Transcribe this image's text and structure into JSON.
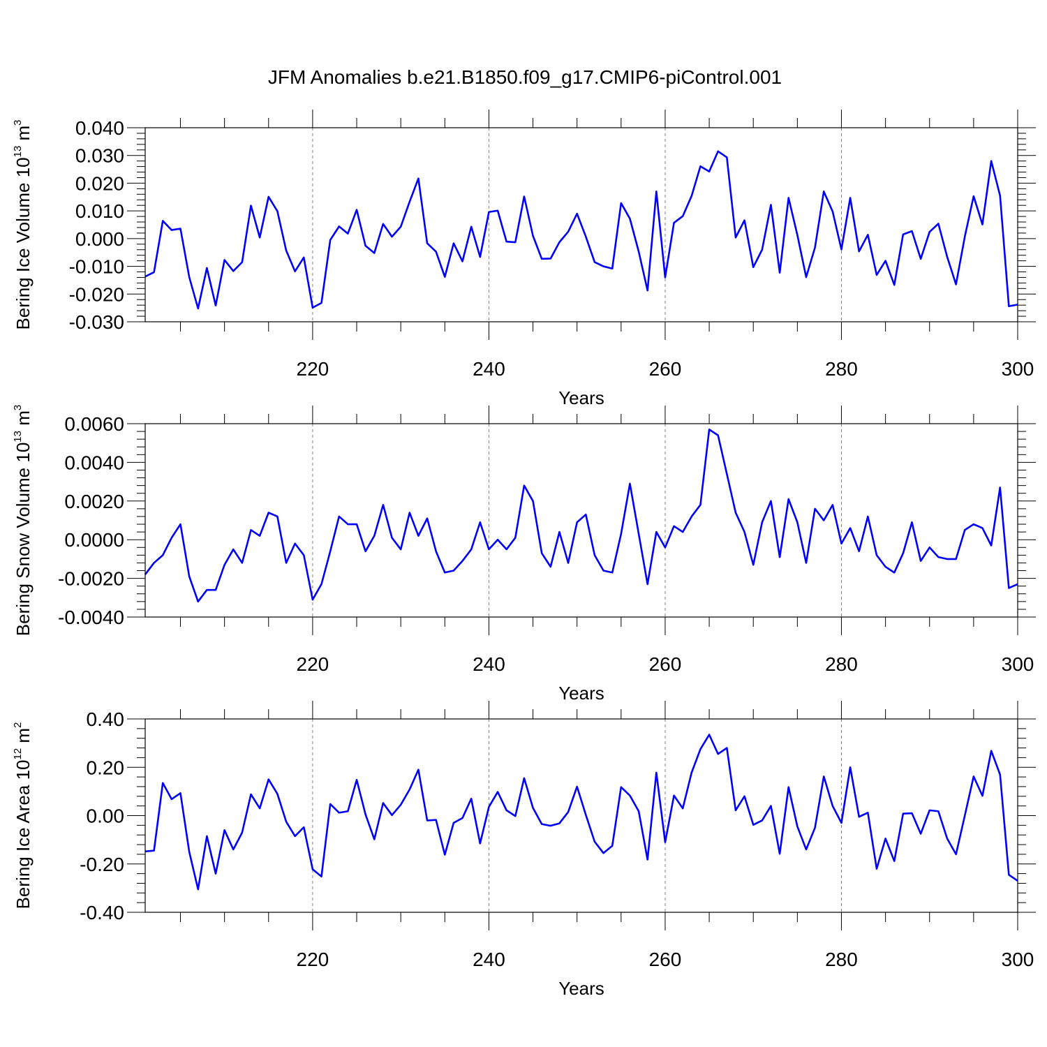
{
  "title": "JFM Anomalies b.e21.B1850.f09_g17.CMIP6-piControl.001",
  "colors": {
    "line": "#0000ff",
    "axis": "#000000",
    "grid": "#808080",
    "background": "#ffffff"
  },
  "chart_data": [
    {
      "type": "line",
      "ylabel": {
        "base": "Bering Ice Volume 10",
        "exp": "13",
        "unit": " m",
        "unit_exp": "3"
      },
      "xlabel": "Years",
      "xlim": [
        201,
        300
      ],
      "ylim": [
        -0.03,
        0.04
      ],
      "xticks": [
        220,
        240,
        260,
        280,
        300
      ],
      "yticks": [
        -0.03,
        -0.02,
        -0.01,
        0.0,
        0.01,
        0.02,
        0.03,
        0.04
      ],
      "ytick_labels": [
        "-0.030",
        "-0.020",
        "-0.010",
        "0.000",
        "0.010",
        "0.020",
        "0.030",
        "0.040"
      ],
      "grid_x": [
        220,
        240,
        260,
        280
      ],
      "x_start": 201,
      "values": [
        -0.0137,
        -0.0121,
        0.0064,
        0.0031,
        0.0036,
        -0.0139,
        -0.0252,
        -0.0106,
        -0.0241,
        -0.0077,
        -0.0117,
        -0.0085,
        0.0119,
        0.0004,
        0.0151,
        0.0099,
        -0.0043,
        -0.0118,
        -0.0068,
        -0.0249,
        -0.0232,
        -0.0005,
        0.0044,
        0.0018,
        0.0104,
        -0.0026,
        -0.0052,
        0.0053,
        0.0007,
        0.0043,
        0.0133,
        0.0217,
        -0.0017,
        -0.0047,
        -0.0138,
        -0.0017,
        -0.0082,
        0.0043,
        -0.0066,
        0.0096,
        0.0101,
        -0.0011,
        -0.0013,
        0.0152,
        0.001,
        -0.0073,
        -0.0072,
        -0.0013,
        0.0025,
        0.009,
        0.0007,
        -0.0085,
        -0.01,
        -0.0108,
        0.0128,
        0.0072,
        -0.0047,
        -0.0187,
        0.017,
        -0.014,
        0.0057,
        0.0081,
        0.0154,
        0.0261,
        0.0242,
        0.0315,
        0.0293,
        0.0004,
        0.0066,
        -0.0103,
        -0.004,
        0.0122,
        -0.0123,
        0.0147,
        0.0013,
        -0.0139,
        -0.0032,
        0.017,
        0.0098,
        -0.0039,
        0.0147,
        -0.0046,
        0.0014,
        -0.0131,
        -0.008,
        -0.0167,
        0.0015,
        0.0027,
        -0.0073,
        0.0024,
        0.0054,
        -0.0066,
        -0.0165,
        0.0007,
        0.0153,
        0.0051,
        0.028,
        0.0155,
        -0.0244,
        -0.0238
      ]
    },
    {
      "type": "line",
      "ylabel": {
        "base": "Bering Snow Volume 10",
        "exp": "13",
        "unit": " m",
        "unit_exp": "3"
      },
      "xlabel": "Years",
      "xlim": [
        201,
        300
      ],
      "ylim": [
        -0.004,
        0.006
      ],
      "xticks": [
        220,
        240,
        260,
        280,
        300
      ],
      "yticks": [
        -0.004,
        -0.002,
        0.0,
        0.002,
        0.004,
        0.006
      ],
      "ytick_labels": [
        "-0.0040",
        "-0.0020",
        "0.0000",
        "0.0020",
        "0.0040",
        "0.0060"
      ],
      "grid_x": [
        220,
        240,
        260,
        280
      ],
      "x_start": 201,
      "values": [
        -0.0018,
        -0.0012,
        -0.0008,
        0.0001,
        0.0008,
        -0.0019,
        -0.0032,
        -0.0026,
        -0.0026,
        -0.0013,
        -0.0005,
        -0.0012,
        0.0005,
        0.0002,
        0.0014,
        0.0012,
        -0.0012,
        -0.0002,
        -0.0008,
        -0.0031,
        -0.0023,
        -0.0006,
        0.0012,
        0.0008,
        0.0008,
        -0.0006,
        0.0002,
        0.0018,
        0.0001,
        -0.0005,
        0.0014,
        0.0002,
        0.0011,
        -0.0006,
        -0.0017,
        -0.0016,
        -0.0011,
        -0.0005,
        0.0009,
        -0.0005,
        0.0,
        -0.0005,
        0.0001,
        0.0028,
        0.002,
        -0.0007,
        -0.0014,
        0.0004,
        -0.0012,
        0.0009,
        0.0013,
        -0.0008,
        -0.0016,
        -0.0017,
        0.0003,
        0.0029,
        0.0003,
        -0.0023,
        0.0004,
        -0.0004,
        0.0007,
        0.0004,
        0.0012,
        0.0018,
        0.0057,
        0.0054,
        0.0034,
        0.0014,
        0.0004,
        -0.0013,
        0.0009,
        0.002,
        -0.0009,
        0.0021,
        0.0009,
        -0.0012,
        0.0016,
        0.001,
        0.0018,
        -0.0002,
        0.0006,
        -0.0006,
        0.0012,
        -0.0008,
        -0.0014,
        -0.0017,
        -0.0007,
        0.0009,
        -0.0011,
        -0.0004,
        -0.0009,
        -0.001,
        -0.001,
        0.0005,
        0.0008,
        0.0006,
        -0.0003,
        0.0027,
        -0.0025,
        -0.0023
      ]
    },
    {
      "type": "line",
      "ylabel": {
        "base": "Bering Ice Area 10",
        "exp": "12",
        "unit": " m",
        "unit_exp": "2"
      },
      "xlabel": "Years",
      "xlim": [
        201,
        300
      ],
      "ylim": [
        -0.4,
        0.4
      ],
      "xticks": [
        220,
        240,
        260,
        280,
        300
      ],
      "yticks": [
        -0.4,
        -0.2,
        0.0,
        0.2,
        0.4
      ],
      "ytick_labels": [
        "-0.40",
        "-0.20",
        "0.00",
        "0.20",
        "0.40"
      ],
      "grid_x": [
        220,
        240,
        260,
        280
      ],
      "x_start": 201,
      "values": [
        -0.148,
        -0.145,
        0.135,
        0.068,
        0.093,
        -0.15,
        -0.305,
        -0.085,
        -0.24,
        -0.06,
        -0.14,
        -0.07,
        0.088,
        0.03,
        0.15,
        0.09,
        -0.025,
        -0.085,
        -0.048,
        -0.222,
        -0.252,
        0.048,
        0.012,
        0.018,
        0.148,
        0.005,
        -0.098,
        0.052,
        0.002,
        0.045,
        0.108,
        0.19,
        -0.02,
        -0.018,
        -0.162,
        -0.03,
        -0.01,
        0.07,
        -0.115,
        0.036,
        0.098,
        0.022,
        -0.002,
        0.155,
        0.032,
        -0.035,
        -0.042,
        -0.032,
        0.015,
        0.12,
        0.003,
        -0.108,
        -0.155,
        -0.125,
        0.118,
        0.083,
        0.018,
        -0.182,
        0.178,
        -0.11,
        0.083,
        0.03,
        0.178,
        0.275,
        0.335,
        0.255,
        0.28,
        0.022,
        0.08,
        -0.038,
        -0.02,
        0.04,
        -0.158,
        0.118,
        -0.045,
        -0.14,
        -0.05,
        0.162,
        0.04,
        -0.03,
        0.2,
        -0.005,
        0.012,
        -0.22,
        -0.095,
        -0.188,
        0.008,
        0.01,
        -0.075,
        0.022,
        0.018,
        -0.095,
        -0.16,
        0.0,
        0.162,
        0.082,
        0.268,
        0.17,
        -0.245,
        -0.27
      ]
    }
  ]
}
